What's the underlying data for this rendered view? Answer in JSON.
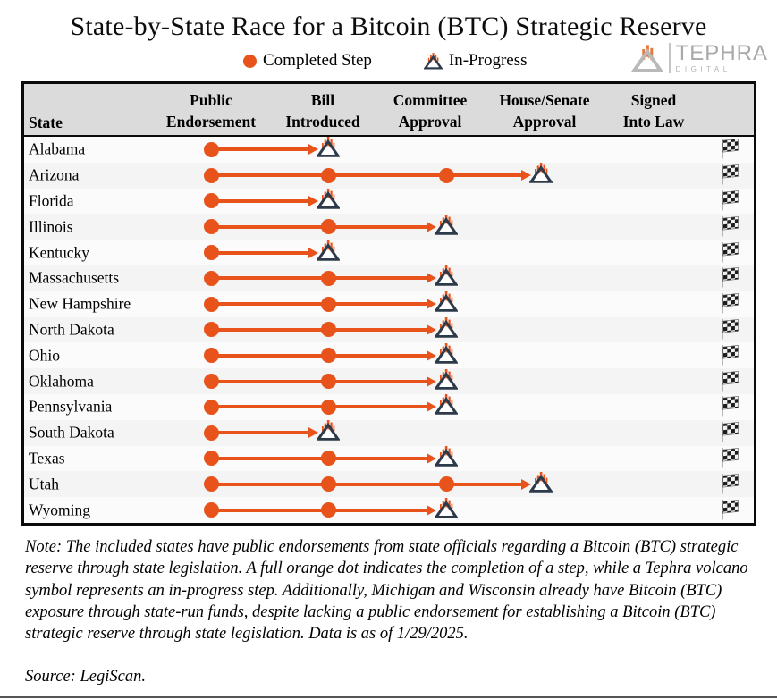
{
  "header": {
    "title": "State-by-State Race for a Bitcoin (BTC) Strategic Reserve"
  },
  "legend": {
    "completed_label": "Completed Step",
    "in_progress_label": "In-Progress"
  },
  "logo": {
    "name": "TEPHRA",
    "sub": "DIGITAL"
  },
  "table": {
    "state_col": "State",
    "columns": [
      {
        "line1": "Public",
        "line2": "Endorsement"
      },
      {
        "line1": "Bill",
        "line2": "Introduced"
      },
      {
        "line1": "Committee",
        "line2": "Approval"
      },
      {
        "line1": "House/Senate",
        "line2": "Approval"
      },
      {
        "line1": "Signed",
        "line2": "Into Law"
      }
    ]
  },
  "chart_data": {
    "type": "table",
    "title": "State-by-State Race for a Bitcoin (BTC) Strategic Reserve",
    "steps": [
      "Public Endorsement",
      "Bill Introduced",
      "Committee Approval",
      "House/Senate Approval",
      "Signed Into Law"
    ],
    "legend": [
      {
        "symbol": "orange-dot",
        "label": "Completed Step"
      },
      {
        "symbol": "volcano",
        "label": "In-Progress"
      }
    ],
    "states": [
      {
        "name": "Alabama",
        "completed": 1,
        "completed_steps": [
          "Public Endorsement"
        ],
        "in_progress_step": "Bill Introduced"
      },
      {
        "name": "Arizona",
        "completed": 3,
        "completed_steps": [
          "Public Endorsement",
          "Bill Introduced",
          "Committee Approval"
        ],
        "in_progress_step": "House/Senate Approval"
      },
      {
        "name": "Florida",
        "completed": 1,
        "completed_steps": [
          "Public Endorsement"
        ],
        "in_progress_step": "Bill Introduced"
      },
      {
        "name": "Illinois",
        "completed": 2,
        "completed_steps": [
          "Public Endorsement",
          "Bill Introduced"
        ],
        "in_progress_step": "Committee Approval"
      },
      {
        "name": "Kentucky",
        "completed": 1,
        "completed_steps": [
          "Public Endorsement"
        ],
        "in_progress_step": "Bill Introduced"
      },
      {
        "name": "Massachusetts",
        "completed": 2,
        "completed_steps": [
          "Public Endorsement",
          "Bill Introduced"
        ],
        "in_progress_step": "Committee Approval"
      },
      {
        "name": "New Hampshire",
        "completed": 2,
        "completed_steps": [
          "Public Endorsement",
          "Bill Introduced"
        ],
        "in_progress_step": "Committee Approval"
      },
      {
        "name": "North Dakota",
        "completed": 2,
        "completed_steps": [
          "Public Endorsement",
          "Bill Introduced"
        ],
        "in_progress_step": "Committee Approval"
      },
      {
        "name": "Ohio",
        "completed": 2,
        "completed_steps": [
          "Public Endorsement",
          "Bill Introduced"
        ],
        "in_progress_step": "Committee Approval"
      },
      {
        "name": "Oklahoma",
        "completed": 2,
        "completed_steps": [
          "Public Endorsement",
          "Bill Introduced"
        ],
        "in_progress_step": "Committee Approval"
      },
      {
        "name": "Pennsylvania",
        "completed": 2,
        "completed_steps": [
          "Public Endorsement",
          "Bill Introduced"
        ],
        "in_progress_step": "Committee Approval"
      },
      {
        "name": "South Dakota",
        "completed": 1,
        "completed_steps": [
          "Public Endorsement"
        ],
        "in_progress_step": "Bill Introduced"
      },
      {
        "name": "Texas",
        "completed": 2,
        "completed_steps": [
          "Public Endorsement",
          "Bill Introduced"
        ],
        "in_progress_step": "Committee Approval"
      },
      {
        "name": "Utah",
        "completed": 3,
        "completed_steps": [
          "Public Endorsement",
          "Bill Introduced",
          "Committee Approval"
        ],
        "in_progress_step": "House/Senate Approval"
      },
      {
        "name": "Wyoming",
        "completed": 2,
        "completed_steps": [
          "Public Endorsement",
          "Bill Introduced"
        ],
        "in_progress_step": "Committee Approval"
      }
    ],
    "colors": {
      "completed": "#E8531C",
      "volcano_outline": "#2D3A4A"
    }
  },
  "footer": {
    "note": "Note: The included states have public endorsements from state officials regarding a Bitcoin (BTC) strategic reserve through state legislation. A full orange dot indicates the completion of a step, while a Tephra volcano symbol represents an in-progress step. Additionally, Michigan and Wisconsin already have Bitcoin (BTC) exposure through state-run funds, despite lacking a public endorsement for establishing a Bitcoin (BTC) strategic reserve through state legislation. Data is as of 1/29/2025.",
    "source": "Source: LegiScan."
  }
}
